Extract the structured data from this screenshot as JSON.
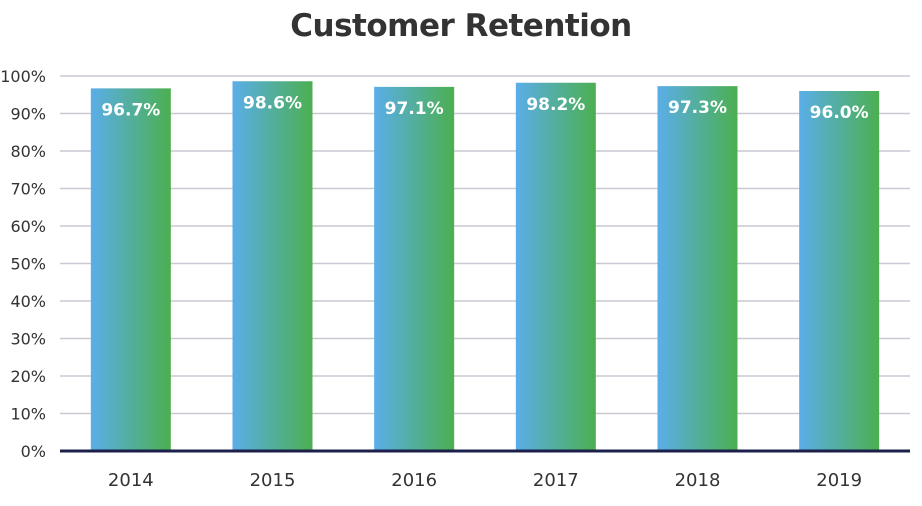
{
  "chart_data": {
    "type": "bar",
    "title": "Customer Retention",
    "xlabel": "",
    "ylabel": "",
    "categories": [
      "2014",
      "2015",
      "2016",
      "2017",
      "2018",
      "2019"
    ],
    "values": [
      96.7,
      98.6,
      97.1,
      98.2,
      97.3,
      96.0
    ],
    "data_labels": [
      "96.7%",
      "98.6%",
      "97.1%",
      "98.2%",
      "97.3%",
      "96.0%"
    ],
    "ylim": [
      0,
      100
    ],
    "yticks": [
      0,
      10,
      20,
      30,
      40,
      50,
      60,
      70,
      80,
      90,
      100
    ],
    "ytick_labels": [
      "0%",
      "10%",
      "20%",
      "30%",
      "40%",
      "50%",
      "60%",
      "70%",
      "80%",
      "90%",
      "100%"
    ],
    "grid": true,
    "legend": "none",
    "colors": {
      "bar_gradient_start": "#5aaee8",
      "bar_gradient_end": "#4caf50",
      "gridline": "#c9c9d4",
      "baseline": "#1b1f4a",
      "text": "#333333",
      "data_label": "#ffffff"
    }
  }
}
